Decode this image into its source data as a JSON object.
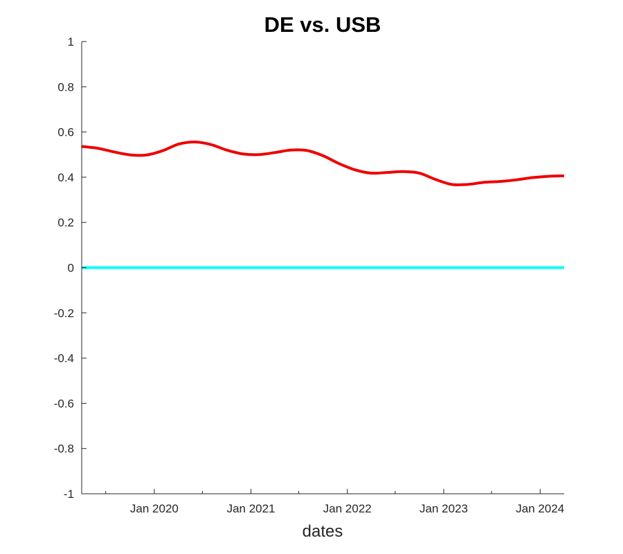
{
  "chart_data": {
    "type": "line",
    "title": "DE vs. USB",
    "xlabel": "dates",
    "ylabel": "",
    "ylim": [
      -1,
      1
    ],
    "xlim": [
      "2019-04-01",
      "2024-04-01"
    ],
    "yticks": [
      -1,
      -0.8,
      -0.6,
      -0.4,
      -0.2,
      0,
      0.2,
      0.4,
      0.6,
      0.8,
      1
    ],
    "ytick_labels": [
      "-1",
      "-0.8",
      "-0.6",
      "-0.4",
      "-0.2",
      "0",
      "0.2",
      "0.4",
      "0.6",
      "0.8",
      "1"
    ],
    "xticks_major": [
      "2020-01-01",
      "2021-01-01",
      "2022-01-01",
      "2023-01-01",
      "2024-01-01"
    ],
    "xtick_labels": [
      "Jan 2020",
      "Jan 2021",
      "Jan 2022",
      "Jan 2023",
      "Jan 2024"
    ],
    "xticks_minor": [
      "2019-07-01",
      "2020-07-01",
      "2021-07-01",
      "2022-07-01",
      "2023-07-01"
    ],
    "grid": false,
    "legend": "none",
    "series": [
      {
        "color": "#ee0000",
        "x": [
          "2019-04-01",
          "2019-06-01",
          "2019-08-01",
          "2019-10-01",
          "2019-12-01",
          "2020-02-01",
          "2020-04-01",
          "2020-06-01",
          "2020-08-01",
          "2020-10-01",
          "2020-12-01",
          "2021-02-01",
          "2021-04-01",
          "2021-06-01",
          "2021-08-01",
          "2021-10-01",
          "2021-12-01",
          "2022-02-01",
          "2022-04-01",
          "2022-06-01",
          "2022-08-01",
          "2022-10-01",
          "2022-12-01",
          "2023-02-01",
          "2023-04-01",
          "2023-06-01",
          "2023-08-01",
          "2023-10-01",
          "2023-12-01",
          "2024-02-01",
          "2024-04-01"
        ],
        "y": [
          0.536,
          0.528,
          0.512,
          0.499,
          0.498,
          0.517,
          0.546,
          0.556,
          0.545,
          0.52,
          0.503,
          0.5,
          0.509,
          0.52,
          0.518,
          0.495,
          0.46,
          0.432,
          0.418,
          0.421,
          0.425,
          0.418,
          0.39,
          0.368,
          0.368,
          0.377,
          0.381,
          0.388,
          0.398,
          0.404,
          0.406
        ]
      },
      {
        "color": "#00ffff",
        "x": [
          "2019-04-01",
          "2024-04-01"
        ],
        "y": [
          0,
          0
        ]
      }
    ]
  }
}
